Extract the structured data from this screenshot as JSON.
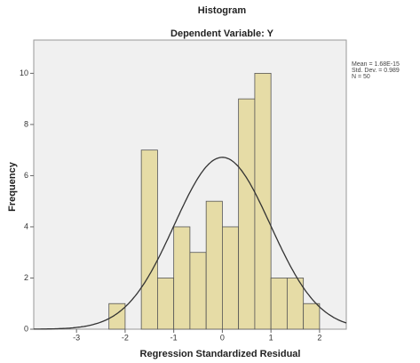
{
  "chart_data": {
    "type": "histogram",
    "title": "Histogram",
    "subtitle": "Dependent Variable: Y",
    "x_label": "Regression Standardized Residual",
    "y_label": "Frequency",
    "bins": [
      -2.333,
      -2,
      -1.667,
      -1.333,
      -1,
      -0.667,
      -0.333,
      0,
      0.333,
      0.667,
      1,
      1.333,
      1.667,
      2
    ],
    "counts": [
      1,
      0,
      7,
      2,
      4,
      3,
      5,
      4,
      9,
      10,
      2,
      2,
      1
    ],
    "color": "#e6dca6",
    "xlim": [
      -3.88,
      2.55
    ],
    "xticks": [
      -3,
      -2,
      -1,
      0,
      1,
      2
    ],
    "ylim": [
      0,
      11.3
    ],
    "yticks": [
      0,
      2,
      4,
      6,
      8,
      10
    ],
    "legend": [
      "Mean = 1.68E-15",
      "Std. Dev. = 0.989",
      "N = 50"
    ],
    "normal_curve": {
      "mean": 1.68e-15,
      "sd": 0.989,
      "n": 50
    }
  }
}
